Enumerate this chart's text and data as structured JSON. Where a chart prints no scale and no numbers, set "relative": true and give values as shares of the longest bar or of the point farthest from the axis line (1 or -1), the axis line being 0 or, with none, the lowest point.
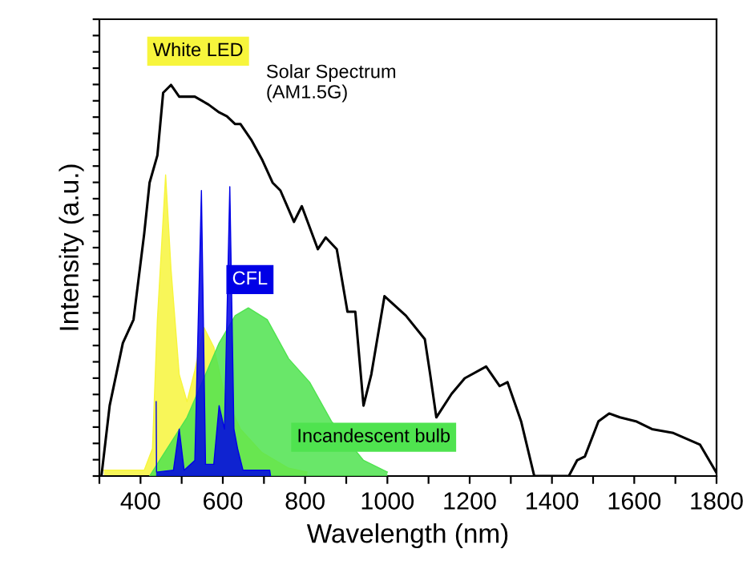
{
  "chart_data": {
    "type": "line",
    "relative": true,
    "xlabel": "Wavelength (nm)",
    "ylabel": "Intensity (a.u.)",
    "xlim": [
      300,
      1800
    ],
    "xticks": [
      {
        "value": 300,
        "label": null
      },
      400,
      {
        "value": 500,
        "label": null
      },
      600,
      {
        "value": 700,
        "label": null
      },
      800,
      {
        "value": 900,
        "label": null
      },
      1000,
      {
        "value": 1100,
        "label": null
      },
      1200,
      {
        "value": 1300,
        "label": null
      },
      1400,
      {
        "value": 1500,
        "label": null
      },
      1600,
      {
        "value": 1700,
        "label": null
      },
      1800
    ],
    "grid": false,
    "legend": false,
    "tick_labels": "x",
    "series": [
      {
        "name": "White LED",
        "type": "area",
        "color": "#f7f53c",
        "x": [
          311,
          409,
          429,
          441,
          461,
          474,
          494,
          513,
          532,
          554,
          578,
          604,
          643,
          695,
          760,
          805
        ],
        "values": [
          0.015,
          0.015,
          0.07,
          0.4,
          0.77,
          0.53,
          0.26,
          0.19,
          0.27,
          0.38,
          0.33,
          0.21,
          0.12,
          0.06,
          0.02,
          0.01
        ]
      },
      {
        "name": "Incandescent bulb",
        "type": "area",
        "color": "#4fe34f",
        "x": [
          422,
          513,
          591,
          630,
          662,
          708,
          760,
          811,
          864,
          942,
          1000
        ],
        "values": [
          0,
          0.15,
          0.34,
          0.41,
          0.43,
          0.4,
          0.3,
          0.24,
          0.14,
          0.04,
          0.01
        ]
      },
      {
        "name": "CFL",
        "type": "area",
        "color": "#0000e6",
        "x": [
          438,
          439,
          480,
          494,
          506,
          532,
          548,
          558,
          578,
          591,
          604,
          617,
          627,
          636,
          649,
          714,
          716
        ],
        "values": [
          0.19,
          0.01,
          0.015,
          0.12,
          0.015,
          0.04,
          0.73,
          0.03,
          0.03,
          0.18,
          0.12,
          0.74,
          0.12,
          0.07,
          0.015,
          0.015,
          0
        ]
      },
      {
        "name": "Solar Spectrum\n(AM1.5G)",
        "color": "#000000",
        "x": [
          305,
          325,
          357,
          383,
          409,
          422,
          441,
          455,
          474,
          494,
          532,
          565,
          591,
          610,
          630,
          643,
          669,
          695,
          721,
          740,
          773,
          792,
          831,
          850,
          877,
          903,
          922,
          942,
          961,
          993,
          1045,
          1091,
          1104,
          1119,
          1156,
          1188,
          1240,
          1273,
          1292,
          1325,
          1357,
          1441,
          1461,
          1480,
          1513,
          1539,
          1565,
          1604,
          1643,
          1695,
          1760,
          1799
        ],
        "values": [
          0,
          0.18,
          0.34,
          0.4,
          0.62,
          0.75,
          0.82,
          0.98,
          1.0,
          0.97,
          0.97,
          0.95,
          0.93,
          0.92,
          0.9,
          0.9,
          0.86,
          0.81,
          0.75,
          0.73,
          0.65,
          0.69,
          0.58,
          0.61,
          0.58,
          0.42,
          0.42,
          0.18,
          0.26,
          0.46,
          0.41,
          0.35,
          0.26,
          0.15,
          0.21,
          0.25,
          0.28,
          0.23,
          0.24,
          0.14,
          0,
          0,
          0.04,
          0.05,
          0.14,
          0.16,
          0.15,
          0.14,
          0.12,
          0.11,
          0.08,
          0.01
        ]
      }
    ]
  }
}
